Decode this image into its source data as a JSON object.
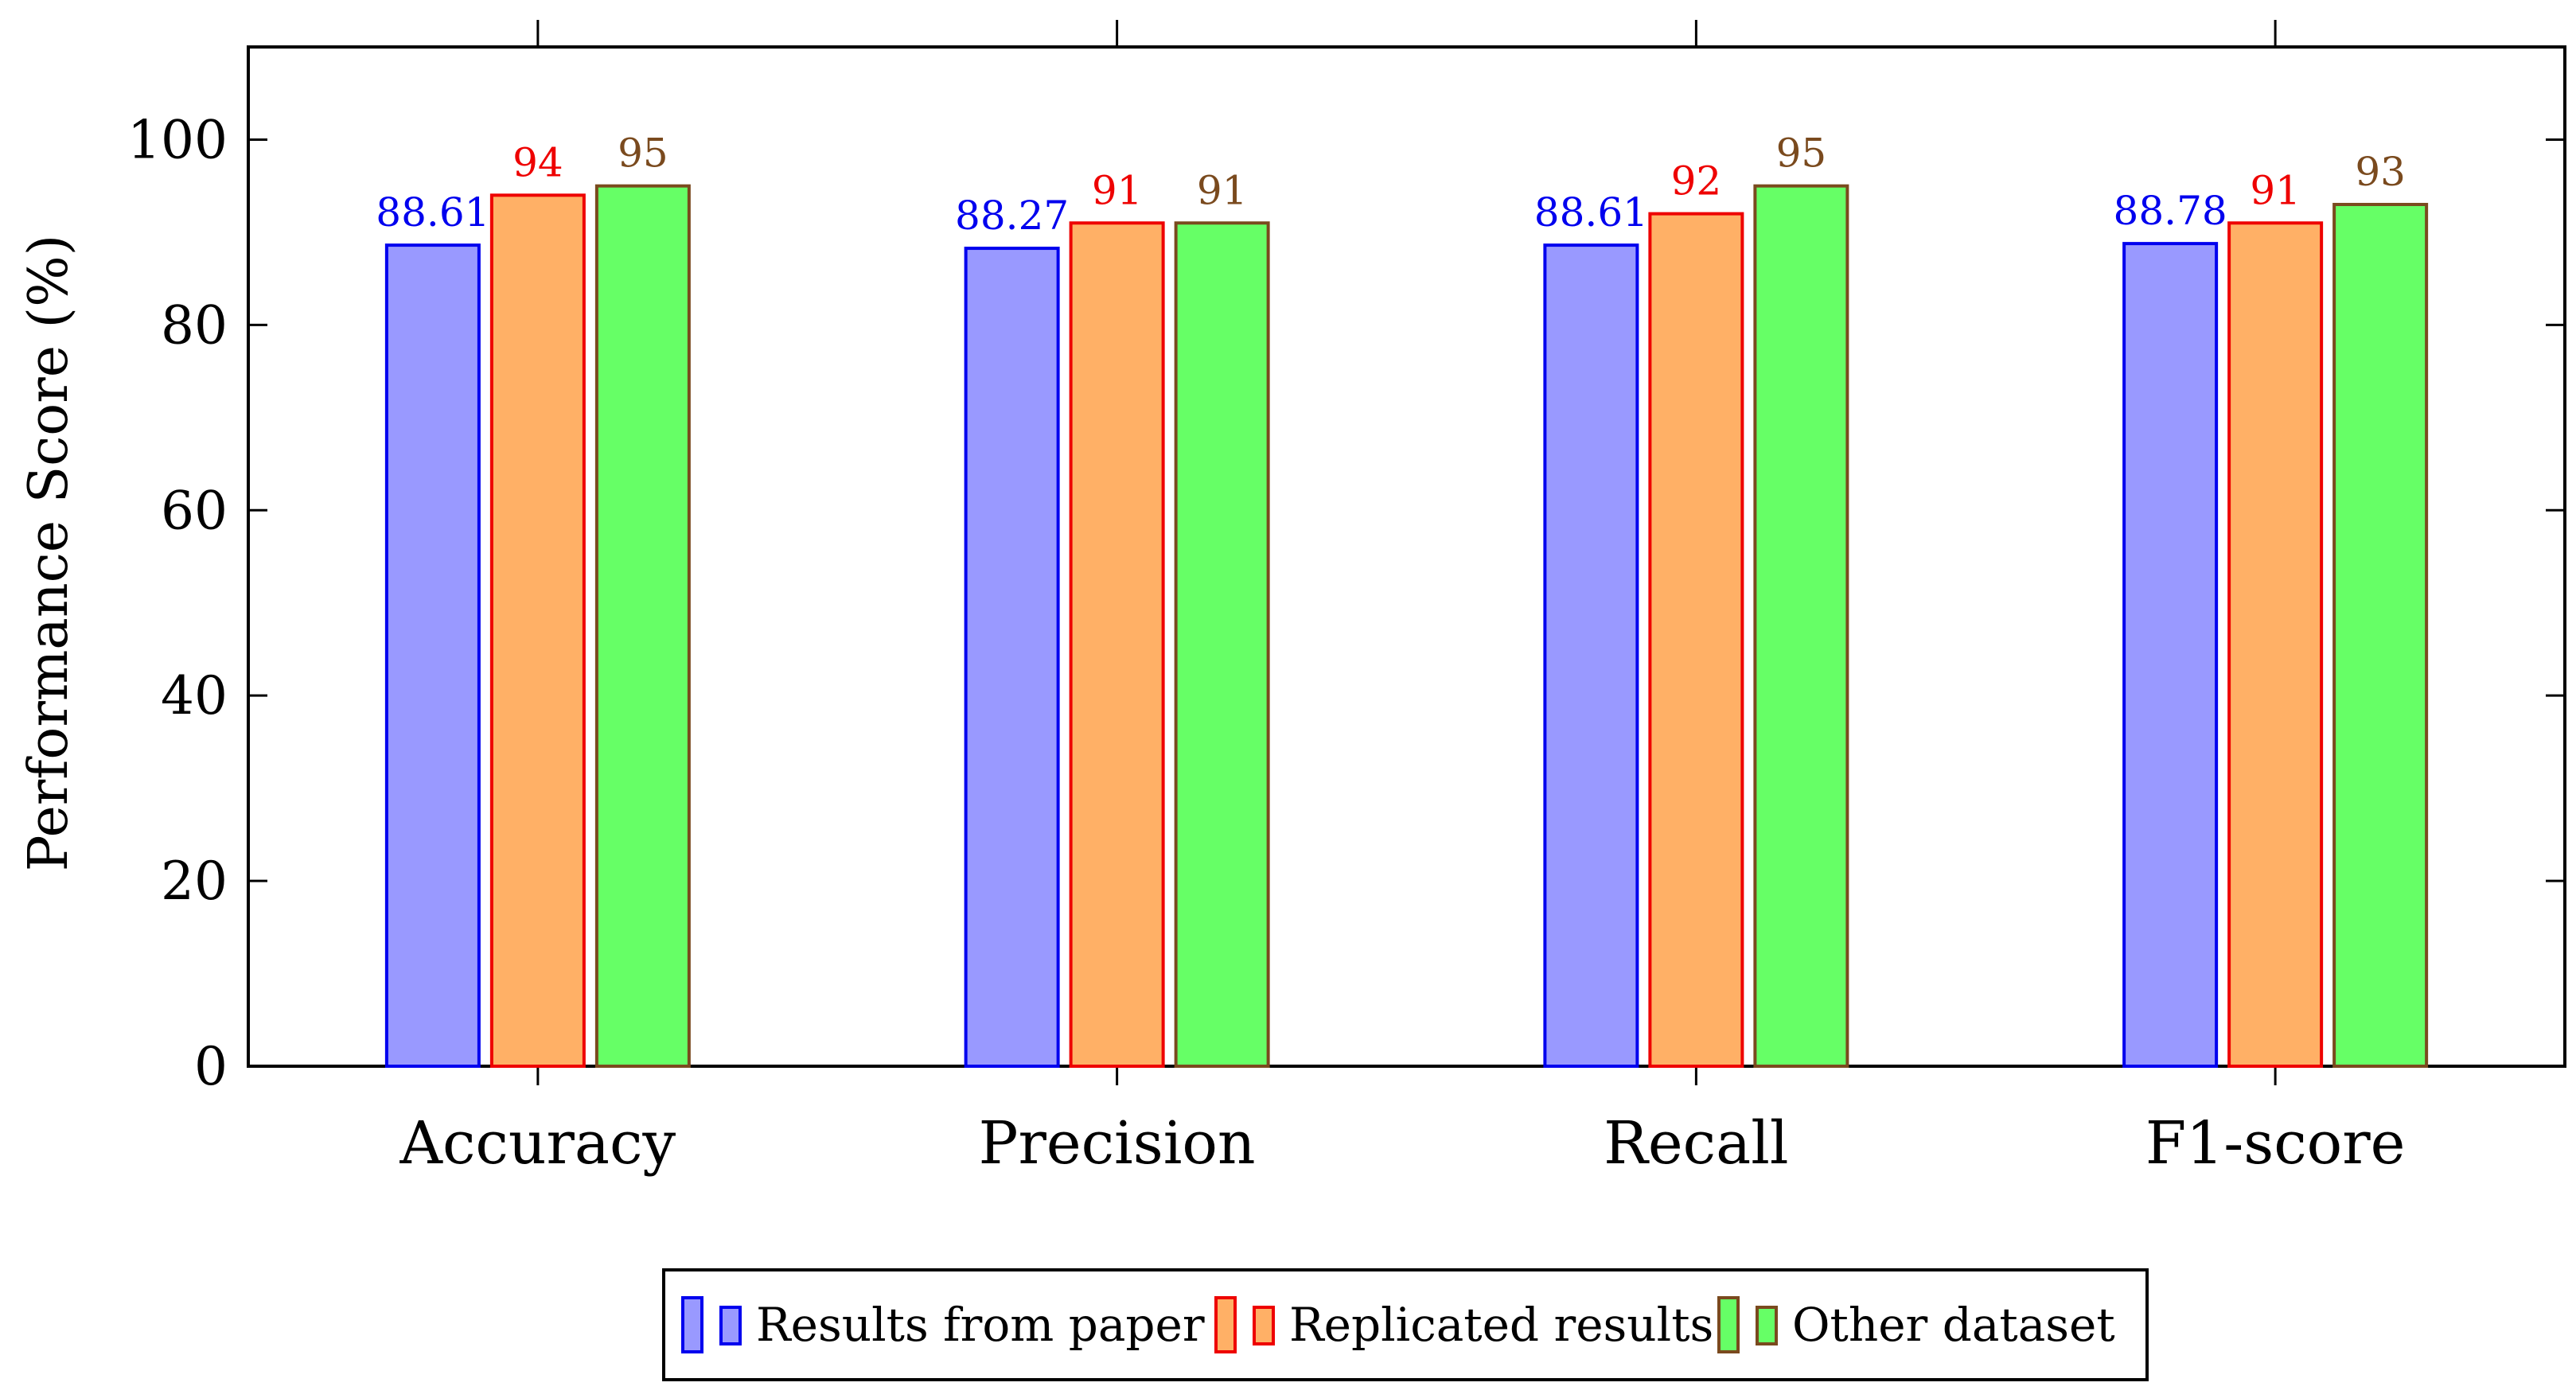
{
  "chart_data": {
    "type": "bar",
    "title": "",
    "xlabel": "",
    "ylabel": "Performance Score (%)",
    "categories": [
      "Accuracy",
      "Precision",
      "Recall",
      "F1-score"
    ],
    "ylim": [
      0,
      110
    ],
    "yticks": [
      0,
      20,
      40,
      60,
      80,
      100
    ],
    "grid": false,
    "legend_position": "bottom-center",
    "series": [
      {
        "name": "Results from paper",
        "values": [
          88.61,
          88.27,
          88.61,
          88.78
        ],
        "labels": [
          "88.61",
          "88.27",
          "88.61",
          "88.78"
        ],
        "fill": "#9999ff",
        "stroke": "#0000ee",
        "label_color": "#0000ee"
      },
      {
        "name": "Replicated results",
        "values": [
          94,
          91,
          92,
          91
        ],
        "labels": [
          "94",
          "91",
          "92",
          "91"
        ],
        "fill": "#ffb066",
        "stroke": "#ee0000",
        "label_color": "#ee0000"
      },
      {
        "name": "Other dataset",
        "values": [
          95,
          91,
          95,
          93
        ],
        "labels": [
          "95",
          "91",
          "95",
          "93"
        ],
        "fill": "#66ff66",
        "stroke": "#7a4a1e",
        "label_color": "#7a4a1e"
      }
    ]
  }
}
